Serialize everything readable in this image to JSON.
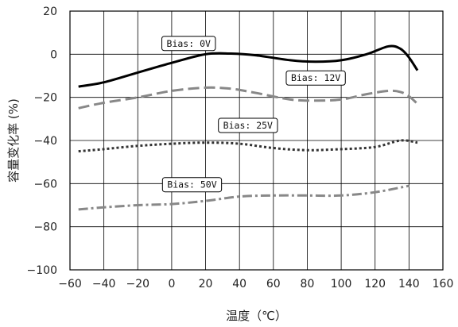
{
  "chart_data": {
    "type": "line",
    "title": "",
    "xlabel": "温度（℃）",
    "ylabel": "容量变化率 (%)",
    "xlim": [
      -60,
      160
    ],
    "ylim": [
      -100,
      20
    ],
    "xticks": [
      -60,
      -40,
      -20,
      0,
      20,
      40,
      60,
      80,
      100,
      120,
      140,
      160
    ],
    "yticks": [
      20,
      0,
      -20,
      -40,
      -60,
      -80,
      -100
    ],
    "grid": true,
    "series": [
      {
        "name": "Bias: 0V",
        "color": "#000000",
        "dash": "solid",
        "label_at": [
          10,
          5
        ],
        "points": [
          [
            -55,
            -15
          ],
          [
            -40,
            -13
          ],
          [
            -20,
            -8.5
          ],
          [
            0,
            -4
          ],
          [
            20,
            0
          ],
          [
            35,
            0.3
          ],
          [
            50,
            -0.5
          ],
          [
            70,
            -2.8
          ],
          [
            85,
            -3.5
          ],
          [
            100,
            -2.8
          ],
          [
            115,
            0
          ],
          [
            128,
            3.7
          ],
          [
            135,
            2.5
          ],
          [
            140,
            -1.5
          ],
          [
            145,
            -7.5
          ]
        ]
      },
      {
        "name": "Bias: 12V",
        "color": "#888888",
        "dash": "long-dash",
        "label_at": [
          85,
          -11
        ],
        "points": [
          [
            -55,
            -25
          ],
          [
            -40,
            -22.5
          ],
          [
            -20,
            -20
          ],
          [
            0,
            -17
          ],
          [
            20,
            -15.5
          ],
          [
            35,
            -16
          ],
          [
            50,
            -18
          ],
          [
            70,
            -21
          ],
          [
            85,
            -21.5
          ],
          [
            100,
            -21
          ],
          [
            115,
            -18.5
          ],
          [
            128,
            -17
          ],
          [
            135,
            -17.5
          ],
          [
            140,
            -19.5
          ],
          [
            145,
            -23
          ]
        ]
      },
      {
        "name": "Bias: 25V",
        "color": "#333333",
        "dash": "dotted",
        "label_at": [
          45,
          -33
        ],
        "points": [
          [
            -55,
            -45
          ],
          [
            -40,
            -44
          ],
          [
            -20,
            -42.5
          ],
          [
            0,
            -41.5
          ],
          [
            20,
            -41
          ],
          [
            40,
            -41.5
          ],
          [
            60,
            -43.5
          ],
          [
            80,
            -44.5
          ],
          [
            100,
            -44
          ],
          [
            120,
            -43
          ],
          [
            135,
            -40
          ],
          [
            145,
            -41
          ]
        ]
      },
      {
        "name": "Bias: 50V",
        "color": "#888888",
        "dash": "dash-dot",
        "label_at": [
          12,
          -60.5
        ],
        "points": [
          [
            -55,
            -72
          ],
          [
            -40,
            -71
          ],
          [
            -20,
            -70
          ],
          [
            0,
            -69.5
          ],
          [
            20,
            -68
          ],
          [
            40,
            -66
          ],
          [
            60,
            -65.5
          ],
          [
            80,
            -65.5
          ],
          [
            100,
            -65.5
          ],
          [
            120,
            -64
          ],
          [
            140,
            -61
          ]
        ]
      }
    ]
  }
}
